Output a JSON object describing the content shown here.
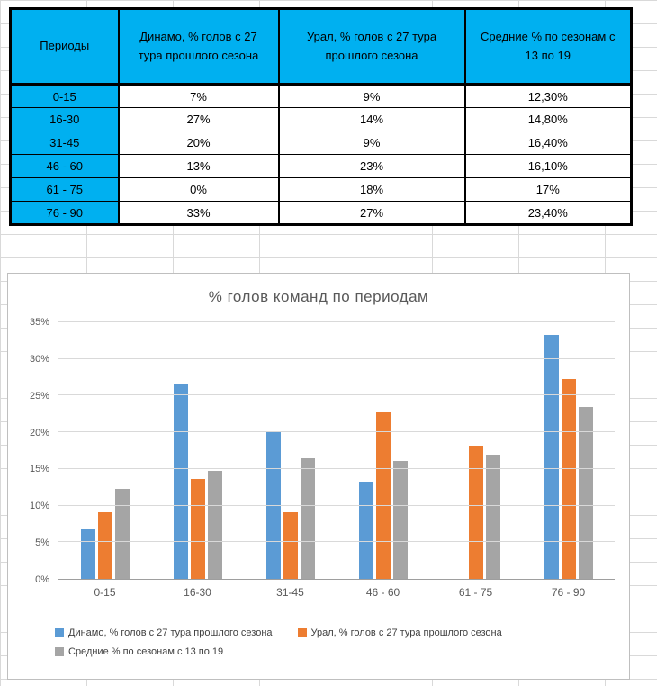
{
  "table": {
    "headers": [
      "Периоды",
      "Динамо, % голов с 27 тура прошлого сезона",
      "Урал, % голов с 27 тура прошлого сезона",
      "Средние % по сезонам с 13 по 19"
    ],
    "rows": [
      [
        "0-15",
        "7%",
        "9%",
        "12,30%"
      ],
      [
        "16-30",
        "27%",
        "14%",
        "14,80%"
      ],
      [
        "31-45",
        "20%",
        "9%",
        "16,40%"
      ],
      [
        "46 - 60",
        "13%",
        "23%",
        "16,10%"
      ],
      [
        "61 - 75",
        "0%",
        "18%",
        "17%"
      ],
      [
        "76 - 90",
        "33%",
        "27%",
        "23,40%"
      ]
    ],
    "header_bg_color": "#00B0F0"
  },
  "chart_data": {
    "type": "bar",
    "title": "% голов команд по периодам",
    "categories": [
      "0-15",
      "16-30",
      "31-45",
      "46 - 60",
      "61 - 75",
      "76 - 90"
    ],
    "series": [
      {
        "name": "Динамо, % голов с 27 тура прошлого сезона",
        "color": "#5B9BD5",
        "values": [
          6.7,
          26.7,
          20,
          13.3,
          0,
          33.3
        ]
      },
      {
        "name": "Урал, % голов с 27 тура прошлого сезона",
        "color": "#ED7D31",
        "values": [
          9.1,
          13.6,
          9.1,
          22.7,
          18.2,
          27.3
        ]
      },
      {
        "name": "Средние % по сезонам с 13 по 19",
        "color": "#A5A5A5",
        "values": [
          12.3,
          14.8,
          16.4,
          16.1,
          17,
          23.4
        ]
      }
    ],
    "ylim": [
      0,
      35
    ],
    "y_tick_step": 5,
    "y_ticks": [
      "0%",
      "5%",
      "10%",
      "15%",
      "20%",
      "25%",
      "30%",
      "35%"
    ],
    "grid": true,
    "legend_position": "bottom"
  }
}
